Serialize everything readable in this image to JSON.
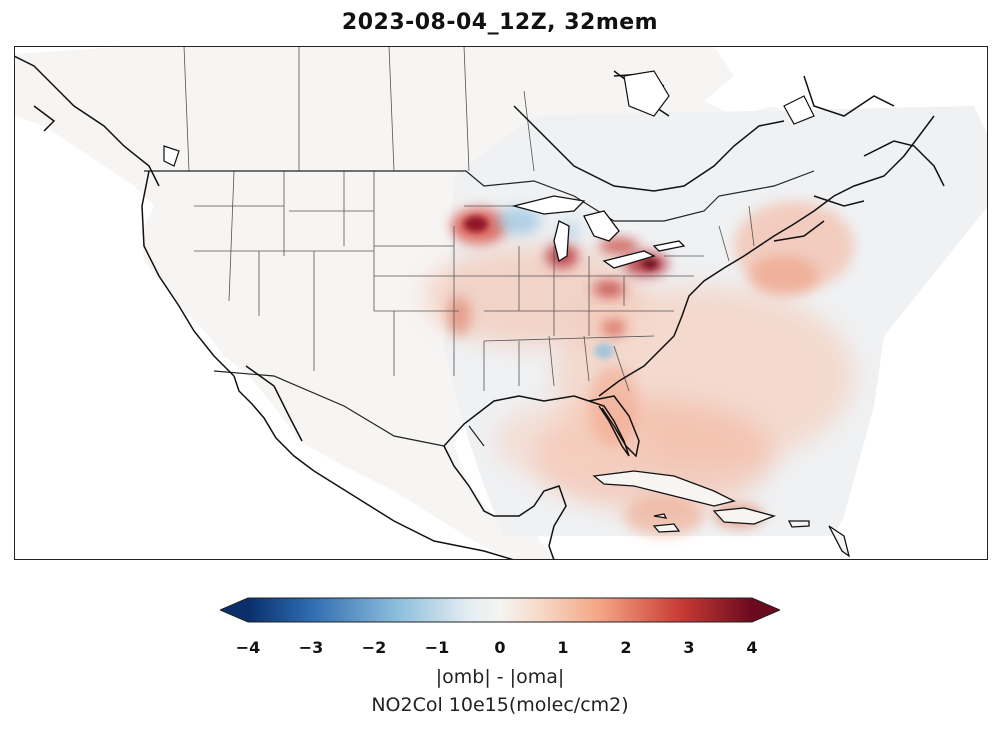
{
  "title": "2023-08-04_12Z, 32mem",
  "colorbar": {
    "ticks": [
      "−4",
      "−3",
      "−2",
      "−1",
      "0",
      "1",
      "2",
      "3",
      "4"
    ],
    "label_line1": "|omb| - |oma|",
    "label_line2": "NO2Col 10e15(molec/cm2)",
    "min": -4,
    "max": 4,
    "colormap": "RdBu_r",
    "colors": [
      "#0a2f6b",
      "#2c6ab0",
      "#8fbfdc",
      "#f5f4f2",
      "#f4a483",
      "#c83a35",
      "#6b0a1e"
    ]
  },
  "map": {
    "region": "North America",
    "features": [
      "land",
      "coastlines",
      "country-borders",
      "state-borders",
      "satellite-swath"
    ]
  }
}
